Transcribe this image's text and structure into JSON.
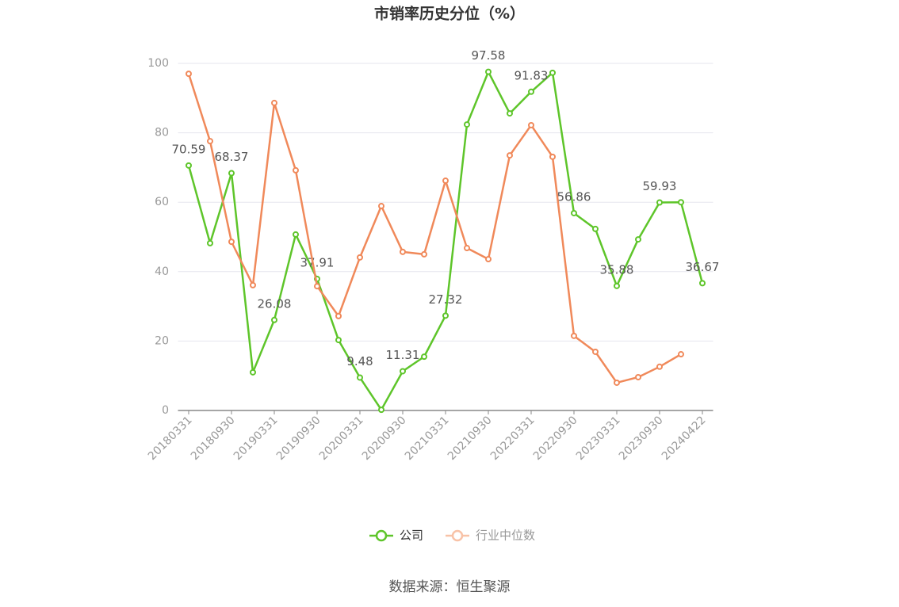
{
  "chart_data": {
    "type": "line",
    "title": "市销率历史分位（%）",
    "categories": [
      "20180331",
      null,
      "20180930",
      null,
      "20190331",
      null,
      "20190930",
      null,
      "20200331",
      null,
      "20200930",
      null,
      "20210331",
      null,
      "20210930",
      null,
      "20220331",
      null,
      "20220930",
      null,
      "20230331",
      null,
      "20230930",
      null,
      "20240422"
    ],
    "series": [
      {
        "name": "公司",
        "color": "#5ec52a",
        "values": [
          70.59,
          48.2,
          68.37,
          11.0,
          26.08,
          50.7,
          37.91,
          20.3,
          9.48,
          0.2,
          11.31,
          15.5,
          27.32,
          82.4,
          97.58,
          85.6,
          91.83,
          97.3,
          56.86,
          52.3,
          35.88,
          49.3,
          59.93,
          60.0,
          36.67
        ],
        "value_labels": [
          "70.59",
          null,
          "68.37",
          null,
          "26.08",
          null,
          "37.91",
          null,
          "9.48",
          null,
          "11.31",
          null,
          "27.32",
          null,
          "97.58",
          null,
          "91.83",
          null,
          "56.86",
          null,
          "35.88",
          null,
          "59.93",
          null,
          "36.67"
        ]
      },
      {
        "name": "行业中位数",
        "color": "#f0895a",
        "values": [
          97.0,
          77.6,
          48.6,
          36.1,
          88.6,
          69.2,
          35.8,
          27.2,
          44.1,
          58.9,
          45.7,
          45.0,
          66.2,
          46.8,
          43.6,
          73.5,
          82.2,
          73.1,
          21.5,
          16.9,
          8.0,
          9.6,
          12.6,
          16.2,
          null
        ]
      }
    ],
    "ylim": [
      0,
      100
    ],
    "yticks": [
      0,
      20,
      40,
      60,
      80,
      100
    ],
    "grid": true,
    "source": "数据来源：恒生聚源"
  }
}
